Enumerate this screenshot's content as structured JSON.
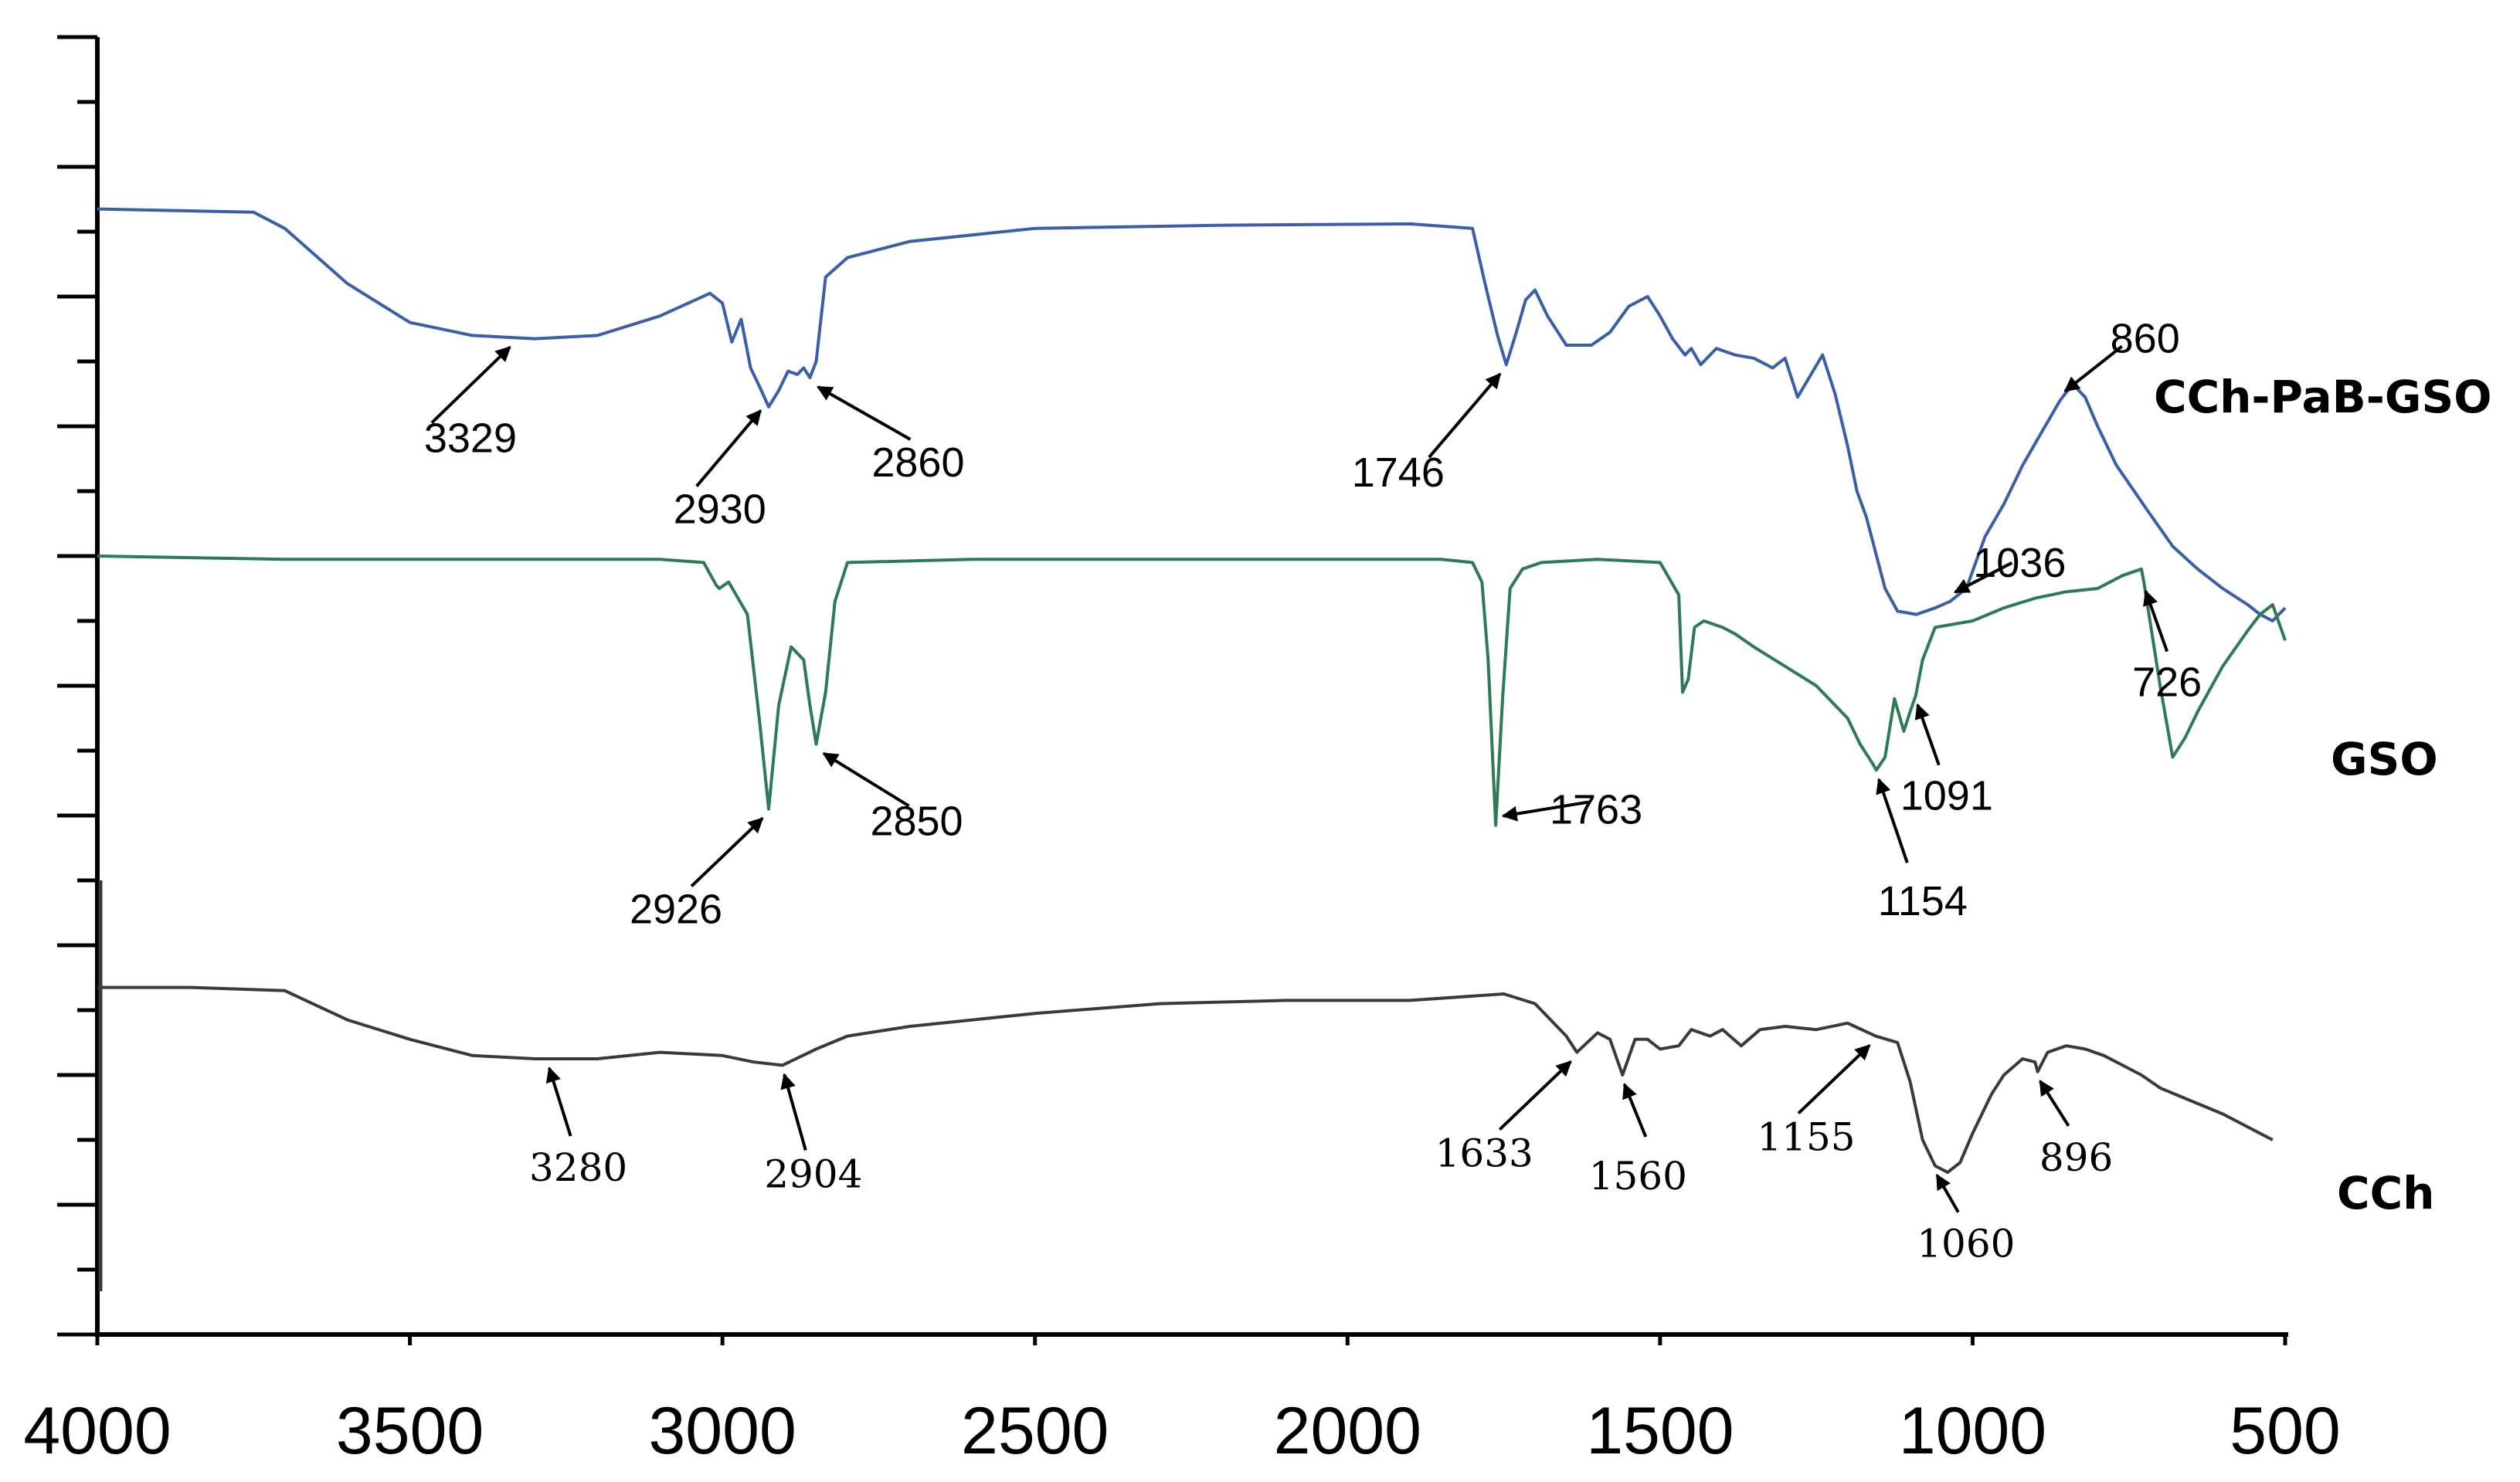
{
  "chart_data": {
    "type": "line",
    "title": "",
    "xlabel": "",
    "ylabel": "",
    "xlim": [
      4000,
      500
    ],
    "x_reversed": true,
    "x_ticks": [
      4000,
      3500,
      3000,
      2500,
      2000,
      1500,
      1000,
      500
    ],
    "x_tick_labels": [
      "4000",
      "3500",
      "3000",
      "2500",
      "2000",
      "1500",
      "1000",
      "500"
    ],
    "ylim": [
      0,
      20
    ],
    "y_ticks_unlabeled": 20,
    "grid": false,
    "legend": "none",
    "series": [
      {
        "name": "CCh-PaB-GSO",
        "color": "#3a5fa8",
        "x": [
          4000,
          3750,
          3700,
          3600,
          3500,
          3400,
          3300,
          3200,
          3100,
          3020,
          3000,
          2985,
          2970,
          2955,
          2940,
          2926,
          2910,
          2895,
          2880,
          2870,
          2860,
          2850,
          2835,
          2800,
          2700,
          2500,
          2200,
          1900,
          1800,
          1780,
          1760,
          1746,
          1730,
          1715,
          1700,
          1680,
          1650,
          1610,
          1580,
          1550,
          1520,
          1500,
          1480,
          1460,
          1450,
          1435,
          1410,
          1380,
          1350,
          1320,
          1300,
          1280,
          1240,
          1220,
          1200,
          1185,
          1170,
          1155,
          1140,
          1120,
          1090,
          1060,
          1036,
          1010,
          980,
          950,
          920,
          890,
          860,
          840,
          820,
          800,
          770,
          720,
          680,
          640,
          600,
          560,
          540,
          520,
          500
        ],
        "y": [
          17.35,
          17.3,
          17.05,
          16.2,
          15.6,
          15.4,
          15.35,
          15.4,
          15.7,
          16.05,
          15.9,
          15.3,
          15.65,
          14.9,
          14.6,
          14.3,
          14.55,
          14.85,
          14.8,
          14.9,
          14.75,
          15.0,
          16.3,
          16.6,
          16.85,
          17.05,
          17.1,
          17.12,
          17.05,
          16.2,
          15.4,
          14.95,
          15.45,
          15.95,
          16.1,
          15.7,
          15.25,
          15.25,
          15.45,
          15.85,
          16.0,
          15.7,
          15.35,
          15.1,
          15.2,
          14.95,
          15.2,
          15.1,
          15.05,
          14.9,
          15.05,
          14.45,
          15.1,
          14.5,
          13.7,
          13.0,
          12.6,
          12.05,
          11.5,
          11.15,
          11.1,
          11.2,
          11.3,
          11.5,
          12.3,
          12.8,
          13.4,
          13.9,
          14.4,
          14.65,
          14.45,
          14.0,
          13.4,
          12.7,
          12.15,
          11.8,
          11.5,
          11.25,
          11.1,
          11.0,
          11.2
        ]
      },
      {
        "name": "GSO",
        "color": "#2d7a55",
        "x": [
          4000,
          3700,
          3400,
          3100,
          3030,
          3010,
          3005,
          2990,
          2960,
          2940,
          2926,
          2910,
          2890,
          2870,
          2860,
          2850,
          2835,
          2820,
          2800,
          2600,
          2400,
          2200,
          2000,
          1850,
          1800,
          1785,
          1775,
          1763,
          1752,
          1740,
          1720,
          1690,
          1600,
          1500,
          1470,
          1464,
          1455,
          1445,
          1430,
          1400,
          1380,
          1350,
          1300,
          1250,
          1200,
          1180,
          1160,
          1154,
          1140,
          1125,
          1110,
          1100,
          1091,
          1080,
          1060,
          1000,
          950,
          900,
          850,
          800,
          760,
          730,
          726,
          700,
          680,
          660,
          640,
          600,
          560,
          540,
          520,
          500
        ],
        "y": [
          12.0,
          11.95,
          11.95,
          11.95,
          11.9,
          11.55,
          11.5,
          11.6,
          11.1,
          9.4,
          8.1,
          9.7,
          10.6,
          10.4,
          9.7,
          9.1,
          9.9,
          11.3,
          11.9,
          11.95,
          11.95,
          11.95,
          11.95,
          11.95,
          11.9,
          11.6,
          10.4,
          7.85,
          9.8,
          11.5,
          11.8,
          11.9,
          11.95,
          11.9,
          11.4,
          9.9,
          10.1,
          10.9,
          11.0,
          10.9,
          10.8,
          10.6,
          10.3,
          10.0,
          9.5,
          9.1,
          8.8,
          8.7,
          8.9,
          9.8,
          9.3,
          9.6,
          9.85,
          10.4,
          10.9,
          11.0,
          11.2,
          11.35,
          11.45,
          11.5,
          11.7,
          11.8,
          11.6,
          10.0,
          8.9,
          9.2,
          9.6,
          10.3,
          10.85,
          11.1,
          11.25,
          10.7
        ]
      },
      {
        "name": "CCh",
        "color": "#3a3a3a",
        "x": [
          4000,
          3850,
          3700,
          3600,
          3500,
          3400,
          3300,
          3280,
          3200,
          3100,
          3000,
          2950,
          2904,
          2850,
          2800,
          2700,
          2500,
          2300,
          2100,
          1900,
          1750,
          1700,
          1650,
          1633,
          1600,
          1580,
          1560,
          1540,
          1520,
          1500,
          1470,
          1450,
          1420,
          1400,
          1370,
          1340,
          1300,
          1250,
          1200,
          1155,
          1120,
          1100,
          1080,
          1060,
          1040,
          1020,
          1000,
          970,
          950,
          920,
          900,
          896,
          880,
          850,
          820,
          790,
          760,
          730,
          700,
          650,
          600,
          550,
          520
        ],
        "y": [
          5.35,
          5.35,
          5.3,
          4.85,
          4.55,
          4.3,
          4.25,
          4.25,
          4.25,
          4.35,
          4.3,
          4.2,
          4.15,
          4.4,
          4.6,
          4.75,
          4.95,
          5.1,
          5.15,
          5.15,
          5.25,
          5.1,
          4.6,
          4.35,
          4.65,
          4.55,
          4.0,
          4.55,
          4.55,
          4.4,
          4.45,
          4.7,
          4.6,
          4.7,
          4.45,
          4.7,
          4.75,
          4.7,
          4.8,
          4.6,
          4.5,
          3.9,
          3.0,
          2.6,
          2.5,
          2.65,
          3.1,
          3.7,
          4.0,
          4.25,
          4.2,
          4.05,
          4.35,
          4.45,
          4.4,
          4.3,
          4.15,
          4.0,
          3.8,
          3.6,
          3.4,
          3.15,
          3.0
        ]
      }
    ],
    "annotations": [
      {
        "label": "3329",
        "series": "CCh-PaB-GSO"
      },
      {
        "label": "2930",
        "series": "CCh-PaB-GSO"
      },
      {
        "label": "2860",
        "series": "CCh-PaB-GSO"
      },
      {
        "label": "1746",
        "series": "CCh-PaB-GSO"
      },
      {
        "label": "860",
        "series": "CCh-PaB-GSO"
      },
      {
        "label": "1036",
        "series": "CCh-PaB-GSO"
      },
      {
        "label": "2926",
        "series": "GSO"
      },
      {
        "label": "2850",
        "series": "GSO"
      },
      {
        "label": "1763",
        "series": "GSO"
      },
      {
        "label": "1091",
        "series": "GSO"
      },
      {
        "label": "1154",
        "series": "GSO"
      },
      {
        "label": "726",
        "series": "GSO"
      },
      {
        "label": "3280",
        "series": "CCh"
      },
      {
        "label": "2904",
        "series": "CCh"
      },
      {
        "label": "1633",
        "series": "CCh"
      },
      {
        "label": "1560",
        "series": "CCh"
      },
      {
        "label": "1155",
        "series": "CCh"
      },
      {
        "label": "1060",
        "series": "CCh"
      },
      {
        "label": "896",
        "series": "CCh"
      }
    ]
  }
}
